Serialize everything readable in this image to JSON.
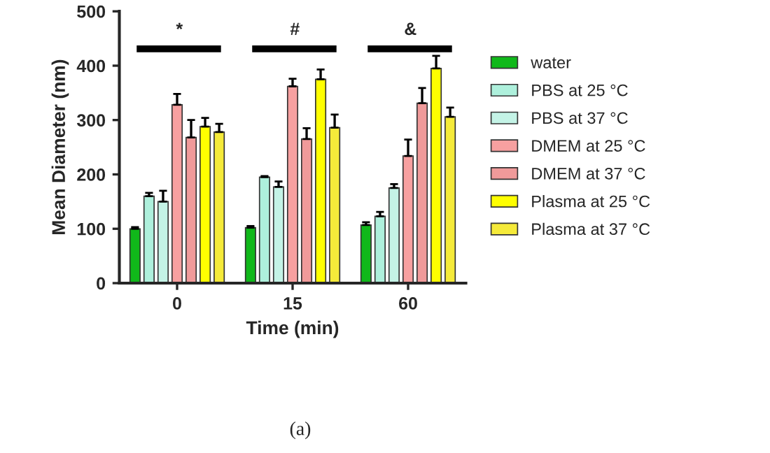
{
  "chart_data": {
    "type": "bar",
    "xlabel": "Time (min)",
    "ylabel": "Mean Diameter (nm)",
    "categories": [
      "0",
      "15",
      "60"
    ],
    "series": [
      {
        "name": "water",
        "color": "#10b81a",
        "values": [
          100,
          102,
          107
        ],
        "errors": [
          [
            100,
            103
          ],
          [
            102,
            105
          ],
          [
            107,
            112
          ]
        ]
      },
      {
        "name": "PBS at 25 °C",
        "color": "#aef0dc",
        "values": [
          160,
          195,
          123
        ],
        "errors": [
          [
            160,
            166
          ],
          [
            195,
            197
          ],
          [
            123,
            131
          ]
        ]
      },
      {
        "name": "PBS at 37 °C",
        "color": "#c4f3e6",
        "values": [
          150,
          177,
          175
        ],
        "errors": [
          [
            150,
            170
          ],
          [
            177,
            187
          ],
          [
            175,
            182
          ]
        ]
      },
      {
        "name": "DMEM at 25 °C",
        "color": "#f7a0a0",
        "values": [
          328,
          362,
          234
        ],
        "errors": [
          [
            328,
            348
          ],
          [
            362,
            376
          ],
          [
            234,
            264
          ]
        ]
      },
      {
        "name": "DMEM at 37 °C",
        "color": "#f09a9a",
        "values": [
          268,
          265,
          331
        ],
        "errors": [
          [
            268,
            300
          ],
          [
            265,
            285
          ],
          [
            331,
            359
          ]
        ]
      },
      {
        "name": "Plasma at 25 °C",
        "color": "#ffff00",
        "values": [
          288,
          375,
          395
        ],
        "errors": [
          [
            288,
            304
          ],
          [
            375,
            393
          ],
          [
            395,
            418
          ]
        ]
      },
      {
        "name": "Plasma at 37 °C",
        "color": "#f5ea3a",
        "values": [
          278,
          286,
          306
        ],
        "errors": [
          [
            278,
            293
          ],
          [
            286,
            310
          ],
          [
            306,
            323
          ]
        ]
      }
    ],
    "ylim": [
      0,
      500
    ],
    "yticks": [
      0,
      100,
      200,
      300,
      400,
      500
    ],
    "grid": false,
    "legend": "right",
    "annotations": [
      "*",
      "#",
      "&",
      "(a)"
    ]
  }
}
